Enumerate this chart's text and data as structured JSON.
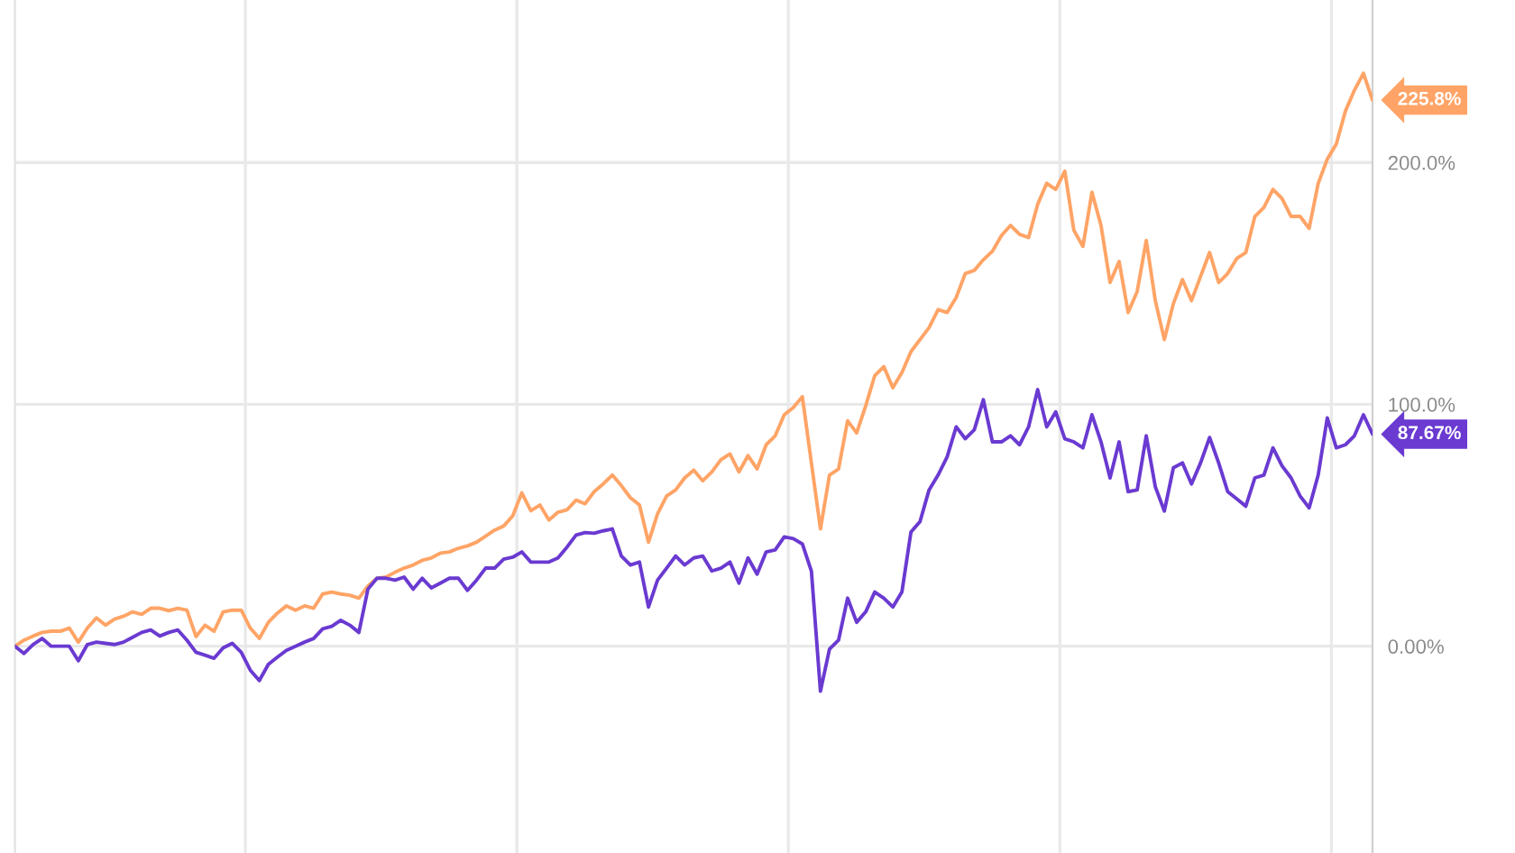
{
  "chart_data": {
    "type": "line",
    "categories": [
      null,
      null,
      null,
      null,
      null,
      null,
      null,
      null,
      null,
      null,
      null,
      null,
      null,
      null,
      null,
      null,
      null,
      null,
      null,
      null,
      null,
      null,
      null,
      null,
      null,
      null,
      null,
      null,
      null,
      null,
      null,
      null,
      null,
      null,
      null,
      null,
      null,
      null,
      null,
      null,
      null,
      null,
      null,
      null,
      null,
      null,
      null,
      null,
      null,
      null,
      null,
      null,
      null,
      null,
      null,
      null,
      null,
      null,
      null,
      null,
      null,
      null,
      null,
      null,
      null,
      null,
      null,
      null,
      null,
      null,
      null,
      null,
      null,
      null,
      null,
      null,
      null,
      null,
      null,
      null,
      null,
      null,
      null,
      null,
      null,
      null,
      null,
      null,
      null,
      null,
      null,
      null,
      null,
      null,
      null,
      null,
      null,
      null,
      null,
      null,
      null,
      null,
      null,
      null,
      null,
      null,
      null,
      null,
      null,
      null,
      null,
      null,
      null,
      null,
      null,
      null,
      null,
      null,
      null,
      null,
      null,
      null,
      null,
      null,
      null,
      null,
      null,
      null,
      null,
      null,
      null,
      null,
      null,
      null,
      null,
      null,
      null,
      null,
      null,
      null,
      null,
      null,
      null,
      null,
      null,
      null,
      null,
      null,
      null,
      null,
      null
    ],
    "series": [
      {
        "color": "#ffa466",
        "values": [
          0,
          2.5,
          4.2,
          5.7,
          6.2,
          6.2,
          7.5,
          1.7,
          7.5,
          11.7,
          8.7,
          11.2,
          12.4,
          14.2,
          13.2,
          15.7,
          15.7,
          14.7,
          15.7,
          14.9,
          4.0,
          8.7,
          6.2,
          14.2,
          14.9,
          14.9,
          7.5,
          3.2,
          9.9,
          13.7,
          16.7,
          14.9,
          16.7,
          15.7,
          21.6,
          22.4,
          21.6,
          21.1,
          19.9,
          24.9,
          28.1,
          28.6,
          30.6,
          32.3,
          33.6,
          35.5,
          36.5,
          38.5,
          39.0,
          40.5,
          41.5,
          43.0,
          45.5,
          48.0,
          49.7,
          53.9,
          63.4,
          56.0,
          58.4,
          52.2,
          55.4,
          56.4,
          60.4,
          58.9,
          63.9,
          67.1,
          70.8,
          66.4,
          61.4,
          58.4,
          43.0,
          54.7,
          62.1,
          64.6,
          69.6,
          72.8,
          68.4,
          72.1,
          77.1,
          79.5,
          72.1,
          78.8,
          73.3,
          83.3,
          87.0,
          95.7,
          98.7,
          103.2,
          75.8,
          48.5,
          70.8,
          73.3,
          93.2,
          88.2,
          99.4,
          111.9,
          115.6,
          106.9,
          113.1,
          121.8,
          126.8,
          131.7,
          139.2,
          138.0,
          144.2,
          154.1,
          155.4,
          159.8,
          163.3,
          169.8,
          174.0,
          170.3,
          169.0,
          182.7,
          191.4,
          188.9,
          196.4,
          172.0,
          165.3,
          187.7,
          174.0,
          150.4,
          159.1,
          138.0,
          146.7,
          167.8,
          142.9,
          126.8,
          141.7,
          151.6,
          142.9,
          152.9,
          162.8,
          150.4,
          154.1,
          160.3,
          162.8,
          177.7,
          181.4,
          188.9,
          185.1,
          177.7,
          177.7,
          172.8,
          191.4,
          201.4,
          207.6,
          221.2,
          229.9,
          236.9,
          225.8
        ],
        "value_labels": [
          null,
          null,
          null,
          null,
          null,
          null,
          null,
          null,
          null,
          null,
          null,
          null,
          null,
          null,
          null,
          null,
          null,
          null,
          null,
          null,
          null,
          null,
          null,
          null,
          null,
          null,
          null,
          null,
          null,
          null,
          null,
          null,
          null,
          null,
          null,
          null,
          null,
          null,
          null,
          null,
          null,
          null,
          null,
          null,
          null,
          null,
          null,
          null,
          null,
          null,
          null,
          null,
          null,
          null,
          null,
          null,
          null,
          null,
          null,
          null,
          null,
          null,
          null,
          null,
          null,
          null,
          null,
          null,
          null,
          null,
          null,
          null,
          null,
          null,
          null,
          null,
          null,
          null,
          null,
          null,
          null,
          null,
          null,
          null,
          null,
          null,
          null,
          null,
          null,
          null,
          null,
          null,
          null,
          null,
          null,
          null,
          null,
          null,
          null,
          null,
          null,
          null,
          null,
          null,
          null,
          null,
          null,
          null,
          null,
          null,
          null,
          null,
          null,
          null,
          null,
          null,
          null,
          null,
          null,
          null,
          null,
          null,
          null,
          null,
          null,
          null,
          null,
          null,
          null,
          null,
          null,
          null,
          null,
          null,
          null,
          null,
          null,
          null,
          null,
          null,
          null,
          null,
          null,
          null,
          null,
          null,
          null,
          null,
          null,
          null,
          "225.8%"
        ]
      },
      {
        "color": "#6a3ad1",
        "values": [
          0,
          -3.0,
          0.7,
          3.2,
          0,
          0,
          0,
          -6.0,
          0.7,
          1.7,
          1.2,
          0.7,
          1.7,
          3.7,
          5.7,
          6.7,
          4.2,
          5.7,
          6.7,
          2.5,
          -2.5,
          -3.7,
          -5.0,
          -0.7,
          1.2,
          -2.5,
          -9.9,
          -14.2,
          -7.5,
          -4.5,
          -1.7,
          0,
          1.7,
          3.2,
          7.2,
          8.2,
          10.7,
          8.7,
          5.7,
          23.6,
          28.1,
          28.1,
          27.3,
          28.6,
          23.6,
          28.1,
          24.1,
          26.1,
          28.1,
          28.1,
          23.1,
          27.3,
          32.3,
          32.3,
          36.0,
          36.8,
          39.0,
          34.8,
          34.8,
          34.8,
          36.5,
          41.0,
          46.0,
          47.0,
          46.7,
          47.7,
          48.5,
          37.3,
          33.6,
          34.8,
          16.2,
          27.3,
          32.3,
          37.3,
          33.6,
          36.5,
          37.3,
          31.1,
          32.3,
          34.8,
          26.1,
          36.5,
          29.8,
          39.0,
          39.8,
          45.2,
          44.5,
          42.3,
          31.1,
          -18.6,
          -1.2,
          2.5,
          19.9,
          9.9,
          14.2,
          22.4,
          19.9,
          16.2,
          22.4,
          47.2,
          51.5,
          64.6,
          70.8,
          78.3,
          90.7,
          85.8,
          89.5,
          101.9,
          84.5,
          84.5,
          87.0,
          83.3,
          90.7,
          106.1,
          90.7,
          96.9,
          85.8,
          84.5,
          82.0,
          95.7,
          84.5,
          69.6,
          84.5,
          63.9,
          64.6,
          87.0,
          65.9,
          55.9,
          73.8,
          75.8,
          67.1,
          75.8,
          86.3,
          75.8,
          63.9,
          60.9,
          57.9,
          69.6,
          70.8,
          82.0,
          74.6,
          69.6,
          62.1,
          57.2,
          70.8,
          94.4,
          82.0,
          83.3,
          87.0,
          95.7,
          87.67
        ],
        "value_labels": [
          null,
          null,
          null,
          null,
          null,
          null,
          null,
          null,
          null,
          null,
          null,
          null,
          null,
          null,
          null,
          null,
          null,
          null,
          null,
          null,
          null,
          null,
          null,
          null,
          null,
          null,
          null,
          null,
          null,
          null,
          null,
          null,
          null,
          null,
          null,
          null,
          null,
          null,
          null,
          null,
          null,
          null,
          null,
          null,
          null,
          null,
          null,
          null,
          null,
          null,
          null,
          null,
          null,
          null,
          null,
          null,
          null,
          null,
          null,
          null,
          null,
          null,
          null,
          null,
          null,
          null,
          null,
          null,
          null,
          null,
          null,
          null,
          null,
          null,
          null,
          null,
          null,
          null,
          null,
          null,
          null,
          null,
          null,
          null,
          null,
          null,
          null,
          null,
          null,
          null,
          null,
          null,
          null,
          null,
          null,
          null,
          null,
          null,
          null,
          null,
          null,
          null,
          null,
          null,
          null,
          null,
          null,
          null,
          null,
          null,
          null,
          null,
          null,
          null,
          null,
          null,
          null,
          null,
          null,
          null,
          null,
          null,
          null,
          null,
          null,
          null,
          null,
          null,
          null,
          null,
          null,
          null,
          null,
          null,
          null,
          null,
          null,
          null,
          null,
          null,
          null,
          null,
          null,
          null,
          null,
          null,
          null,
          null,
          null,
          null,
          "87.67%"
        ]
      }
    ],
    "ylim": [
      -85.5,
      267.2
    ],
    "yticks": [
      {
        "value": 0,
        "label": "0.00%"
      },
      {
        "value": 100,
        "label": "100.0%"
      },
      {
        "value": 200,
        "label": "200.0%"
      }
    ],
    "grid": true,
    "tick_labels": "y"
  }
}
